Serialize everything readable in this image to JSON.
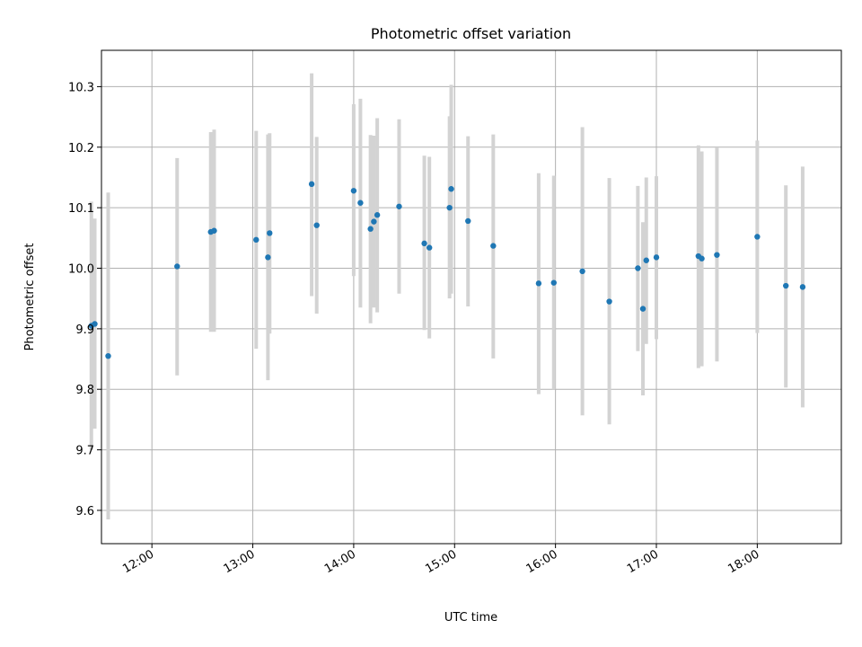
{
  "chart_data": {
    "type": "scatter",
    "title": "Photometric offset variation",
    "xlabel": "UTC time",
    "ylabel": "Photometric offset",
    "xlim": [
      "11:30",
      "18:50"
    ],
    "ylim": [
      9.545,
      10.36
    ],
    "x_ticks": [
      "12:00",
      "13:00",
      "14:00",
      "15:00",
      "16:00",
      "17:00",
      "18:00"
    ],
    "y_ticks": [
      "9.6",
      "9.7",
      "9.8",
      "9.9",
      "10.0",
      "10.1",
      "10.2",
      "10.3"
    ],
    "grid": true,
    "colors": {
      "points": "#1f77b4",
      "errorbars": "#d3d3d3",
      "grid": "#b0b0b0"
    },
    "points": [
      {
        "x": "11:24",
        "y": 9.905,
        "lo": 9.7,
        "hi": 10.11
      },
      {
        "x": "11:26",
        "y": 9.908,
        "lo": 9.735,
        "hi": 10.082
      },
      {
        "x": "11:34",
        "y": 9.855,
        "lo": 9.585,
        "hi": 10.125
      },
      {
        "x": "12:15",
        "y": 10.003,
        "lo": 9.823,
        "hi": 10.182
      },
      {
        "x": "12:35",
        "y": 10.06,
        "lo": 9.895,
        "hi": 10.225
      },
      {
        "x": "12:37",
        "y": 10.062,
        "lo": 9.895,
        "hi": 10.229
      },
      {
        "x": "13:02",
        "y": 10.047,
        "lo": 9.867,
        "hi": 10.227
      },
      {
        "x": "13:09",
        "y": 10.018,
        "lo": 9.815,
        "hi": 10.221
      },
      {
        "x": "13:10",
        "y": 10.058,
        "lo": 9.892,
        "hi": 10.223
      },
      {
        "x": "13:35",
        "y": 10.139,
        "lo": 9.954,
        "hi": 10.322
      },
      {
        "x": "13:38",
        "y": 10.071,
        "lo": 9.925,
        "hi": 10.217
      },
      {
        "x": "14:00",
        "y": 10.128,
        "lo": 9.987,
        "hi": 10.271
      },
      {
        "x": "14:04",
        "y": 10.108,
        "lo": 9.935,
        "hi": 10.28
      },
      {
        "x": "14:10",
        "y": 10.065,
        "lo": 9.909,
        "hi": 10.22
      },
      {
        "x": "14:12",
        "y": 10.077,
        "lo": 9.935,
        "hi": 10.219
      },
      {
        "x": "14:14",
        "y": 10.088,
        "lo": 9.927,
        "hi": 10.248
      },
      {
        "x": "14:27",
        "y": 10.102,
        "lo": 9.958,
        "hi": 10.246
      },
      {
        "x": "14:42",
        "y": 10.041,
        "lo": 9.898,
        "hi": 10.186
      },
      {
        "x": "14:45",
        "y": 10.034,
        "lo": 9.884,
        "hi": 10.184
      },
      {
        "x": "14:57",
        "y": 10.1,
        "lo": 9.95,
        "hi": 10.251
      },
      {
        "x": "14:58",
        "y": 10.131,
        "lo": 9.958,
        "hi": 10.303
      },
      {
        "x": "15:08",
        "y": 10.078,
        "lo": 9.937,
        "hi": 10.218
      },
      {
        "x": "15:23",
        "y": 10.037,
        "lo": 9.851,
        "hi": 10.221
      },
      {
        "x": "15:50",
        "y": 9.975,
        "lo": 9.792,
        "hi": 10.157
      },
      {
        "x": "15:59",
        "y": 9.976,
        "lo": 9.8,
        "hi": 10.153
      },
      {
        "x": "16:16",
        "y": 9.995,
        "lo": 9.757,
        "hi": 10.233
      },
      {
        "x": "16:32",
        "y": 9.945,
        "lo": 9.742,
        "hi": 10.149
      },
      {
        "x": "16:49",
        "y": 10.0,
        "lo": 9.863,
        "hi": 10.136
      },
      {
        "x": "16:52",
        "y": 9.933,
        "lo": 9.79,
        "hi": 10.076
      },
      {
        "x": "16:54",
        "y": 10.013,
        "lo": 9.875,
        "hi": 10.15
      },
      {
        "x": "17:00",
        "y": 10.018,
        "lo": 9.883,
        "hi": 10.152
      },
      {
        "x": "17:25",
        "y": 10.02,
        "lo": 9.835,
        "hi": 10.203
      },
      {
        "x": "17:27",
        "y": 10.016,
        "lo": 9.838,
        "hi": 10.193
      },
      {
        "x": "17:36",
        "y": 10.022,
        "lo": 9.846,
        "hi": 10.199
      },
      {
        "x": "18:00",
        "y": 10.052,
        "lo": 9.893,
        "hi": 10.211
      },
      {
        "x": "18:17",
        "y": 9.971,
        "lo": 9.803,
        "hi": 10.137
      },
      {
        "x": "18:27",
        "y": 9.969,
        "lo": 9.77,
        "hi": 10.168
      }
    ]
  }
}
